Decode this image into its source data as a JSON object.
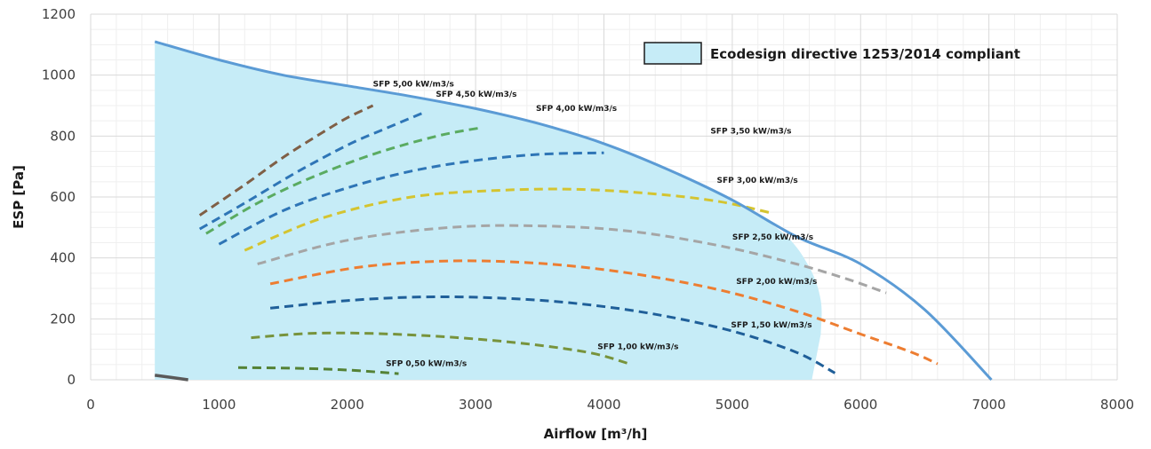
{
  "colors": {
    "region_fill": "#c6ecf7",
    "envelope": "#5b9bd5",
    "grid_major": "#d9d9d9",
    "grid_minor": "#efefef",
    "text": "#404040"
  },
  "chart_data": {
    "type": "line",
    "xlabel": "Airflow [m³/h]",
    "ylabel": "ESP [Pa]",
    "xlim": [
      0,
      8000
    ],
    "ylim": [
      0,
      1200
    ],
    "x_ticks": [
      "0",
      "1000",
      "2000",
      "3000",
      "4000",
      "5000",
      "6000",
      "7000",
      "8000"
    ],
    "y_ticks": [
      "0",
      "200",
      "400",
      "600",
      "800",
      "1000",
      "1200"
    ],
    "grid": true,
    "legend": {
      "position": "top-right",
      "entries": [
        "Ecodesign directive 1253/2014 compliant"
      ]
    },
    "region": {
      "name": "Ecodesign directive 1253/2014 compliant",
      "points": [
        [
          500,
          0
        ],
        [
          500,
          1110
        ],
        [
          1000,
          1050
        ],
        [
          1500,
          1000
        ],
        [
          2000,
          965
        ],
        [
          2500,
          930
        ],
        [
          3000,
          890
        ],
        [
          3500,
          840
        ],
        [
          4000,
          775
        ],
        [
          4500,
          690
        ],
        [
          5000,
          590
        ],
        [
          5400,
          480
        ],
        [
          5600,
          370
        ],
        [
          5690,
          260
        ],
        [
          5690,
          150
        ],
        [
          5620,
          0
        ]
      ]
    },
    "envelope": {
      "points": [
        [
          500,
          1110
        ],
        [
          1000,
          1050
        ],
        [
          1500,
          1000
        ],
        [
          2000,
          965
        ],
        [
          2500,
          930
        ],
        [
          3000,
          890
        ],
        [
          3500,
          840
        ],
        [
          4000,
          775
        ],
        [
          4500,
          690
        ],
        [
          5000,
          590
        ],
        [
          5500,
          470
        ],
        [
          6000,
          380
        ],
        [
          6500,
          230
        ],
        [
          7020,
          0
        ]
      ]
    },
    "series": [
      {
        "label": "SFP 0,50 kW/m3/s",
        "color": "#548235",
        "label_at": [
          2300,
          45
        ],
        "points": [
          [
            1150,
            40
          ],
          [
            1600,
            38
          ],
          [
            2000,
            32
          ],
          [
            2400,
            20
          ]
        ],
        "extra": {
          "color": "#595959",
          "points": [
            [
              500,
              15
            ],
            [
              760,
              0
            ]
          ]
        }
      },
      {
        "label": "SFP 1,00 kW/m3/s",
        "color": "#77933c",
        "label_at": [
          3950,
          100
        ],
        "points": [
          [
            1250,
            138
          ],
          [
            1700,
            152
          ],
          [
            2200,
            152
          ],
          [
            2800,
            140
          ],
          [
            3400,
            118
          ],
          [
            3900,
            88
          ],
          [
            4200,
            52
          ]
        ]
      },
      {
        "label": "SFP 1,50 kW/m3/s",
        "color": "#1f5f99",
        "label_at": [
          4990,
          172
        ],
        "points": [
          [
            1400,
            235
          ],
          [
            2000,
            260
          ],
          [
            2600,
            272
          ],
          [
            3200,
            268
          ],
          [
            3800,
            250
          ],
          [
            4400,
            215
          ],
          [
            5000,
            160
          ],
          [
            5500,
            90
          ],
          [
            5800,
            22
          ]
        ]
      },
      {
        "label": "SFP 2,00 kW/m3/s",
        "color": "#ed7d31",
        "label_at": [
          5030,
          315
        ],
        "points": [
          [
            1400,
            315
          ],
          [
            2100,
            370
          ],
          [
            2800,
            390
          ],
          [
            3500,
            382
          ],
          [
            4200,
            350
          ],
          [
            4900,
            295
          ],
          [
            5500,
            225
          ],
          [
            6000,
            150
          ],
          [
            6400,
            90
          ],
          [
            6600,
            52
          ]
        ]
      },
      {
        "label": "SFP 2,50 kW/m3/s",
        "color": "#a5a5a5",
        "label_at": [
          5000,
          460
        ],
        "points": [
          [
            1300,
            380
          ],
          [
            2000,
            458
          ],
          [
            2800,
            500
          ],
          [
            3500,
            505
          ],
          [
            4200,
            488
          ],
          [
            4900,
            440
          ],
          [
            5500,
            380
          ],
          [
            5900,
            330
          ],
          [
            6200,
            285
          ]
        ]
      },
      {
        "label": "SFP 3,00 kW/m3/s",
        "color": "#d4c430",
        "label_at": [
          4880,
          647
        ],
        "points": [
          [
            1200,
            425
          ],
          [
            1800,
            530
          ],
          [
            2500,
            600
          ],
          [
            3200,
            622
          ],
          [
            3800,
            625
          ],
          [
            4400,
            610
          ],
          [
            4900,
            585
          ],
          [
            5300,
            548
          ]
        ]
      },
      {
        "label": "SFP 3,50 kW/m3/s",
        "color": "#2e75b6",
        "label_at": [
          4830,
          808
        ],
        "points": [
          [
            1000,
            445
          ],
          [
            1500,
            555
          ],
          [
            2000,
            630
          ],
          [
            2500,
            685
          ],
          [
            3000,
            720
          ],
          [
            3500,
            740
          ],
          [
            4000,
            745
          ]
        ]
      },
      {
        "label": "SFP 4,00 kW/m3/s",
        "color": "#5aab61",
        "label_at": [
          3470,
          883
        ],
        "points": [
          [
            900,
            480
          ],
          [
            1300,
            580
          ],
          [
            1700,
            660
          ],
          [
            2200,
            740
          ],
          [
            2700,
            800
          ],
          [
            3050,
            828
          ]
        ]
      },
      {
        "label": "SFP 4,50 kW/m3/s",
        "color": "#2e75b6",
        "label_at": [
          2690,
          929
        ],
        "points": [
          [
            850,
            495
          ],
          [
            1200,
            580
          ],
          [
            1600,
            680
          ],
          [
            2000,
            770
          ],
          [
            2300,
            825
          ],
          [
            2600,
            878
          ]
        ]
      },
      {
        "label": "SFP 5,00 kW/m3/s",
        "color": "#7f5f46",
        "label_at": [
          2200,
          962
        ],
        "points": [
          [
            850,
            540
          ],
          [
            1200,
            640
          ],
          [
            1500,
            730
          ],
          [
            1800,
            810
          ],
          [
            2000,
            860
          ],
          [
            2200,
            900
          ]
        ]
      }
    ]
  }
}
